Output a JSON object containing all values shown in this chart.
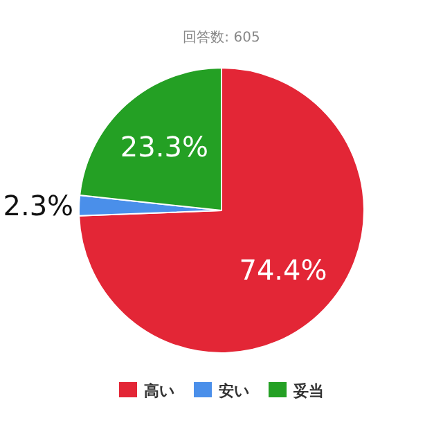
{
  "chart_data": {
    "type": "pie",
    "title": "回答数: 605",
    "categories": [
      "高い",
      "安い",
      "妥当"
    ],
    "values": [
      74.4,
      2.3,
      23.3
    ],
    "value_labels": [
      "74.4%",
      "2.3%",
      "23.3%"
    ],
    "colors": [
      "#e32636",
      "#4a8fea",
      "#24a024"
    ],
    "legend": "bottom"
  }
}
